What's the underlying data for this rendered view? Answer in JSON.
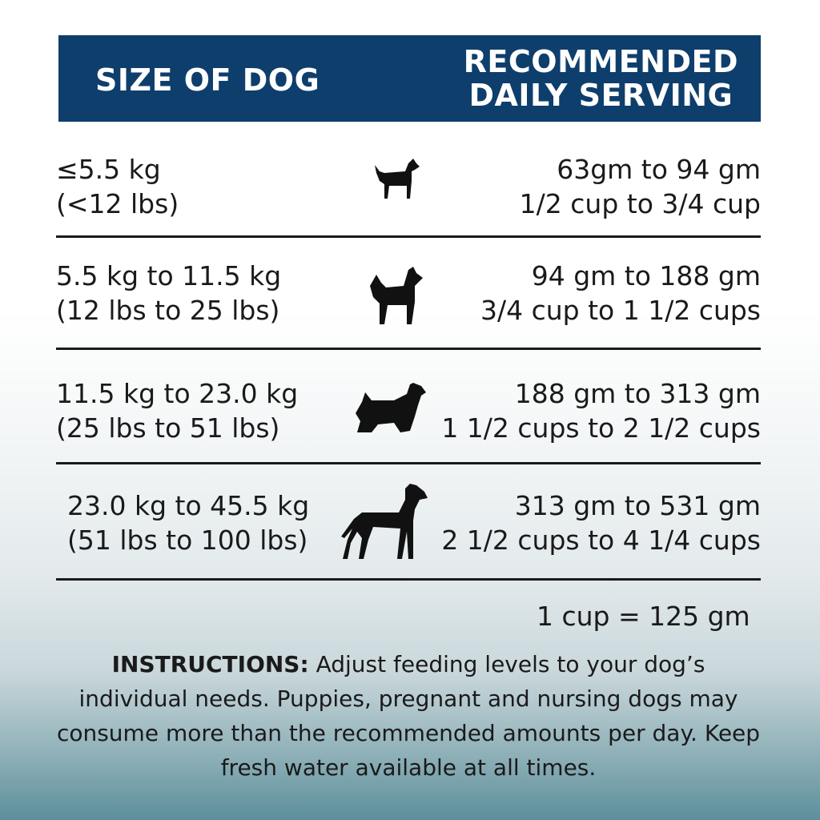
{
  "header": {
    "size_label": "SIZE OF DOG",
    "serving_label_line1": "RECOMMENDED",
    "serving_label_line2": "DAILY SERVING",
    "color": "#0e3e6c"
  },
  "rows": [
    {
      "kg": "≤5.5 kg",
      "lbs": "(<12 lbs)",
      "grams": "63gm to 94 gm",
      "cups": "1/2  cup to 3/4 cup",
      "icon": "small-terrier-dog-icon"
    },
    {
      "kg": "5.5 kg to 11.5 kg",
      "lbs": "(12 lbs to 25 lbs)",
      "grams": "94 gm to 188 gm",
      "cups": "3/4 cup to 1 1/2 cups",
      "icon": "spitz-dog-icon"
    },
    {
      "kg": "11.5 kg to 23.0 kg",
      "lbs": "(25 lbs to 51 lbs)",
      "grams": "188 gm to 313 gm",
      "cups": "1 1/2 cups to 2 1/2 cups",
      "icon": "spaniel-dog-icon"
    },
    {
      "kg": "23.0 kg to 45.5 kg",
      "lbs": "(51 lbs to 100 lbs)",
      "grams": "313 gm to 531 gm",
      "cups": "2 1/2 cups to 4 1/4 cups",
      "icon": "great-dane-dog-icon"
    }
  ],
  "conversion": "1 cup = 125 gm",
  "instructions": {
    "label": "INSTRUCTIONS:",
    "text": " Adjust feeding levels to your dog’s individual needs. Puppies, pregnant and nursing dogs may consume more than the recommended amounts per day. Keep fresh water available at all times."
  }
}
